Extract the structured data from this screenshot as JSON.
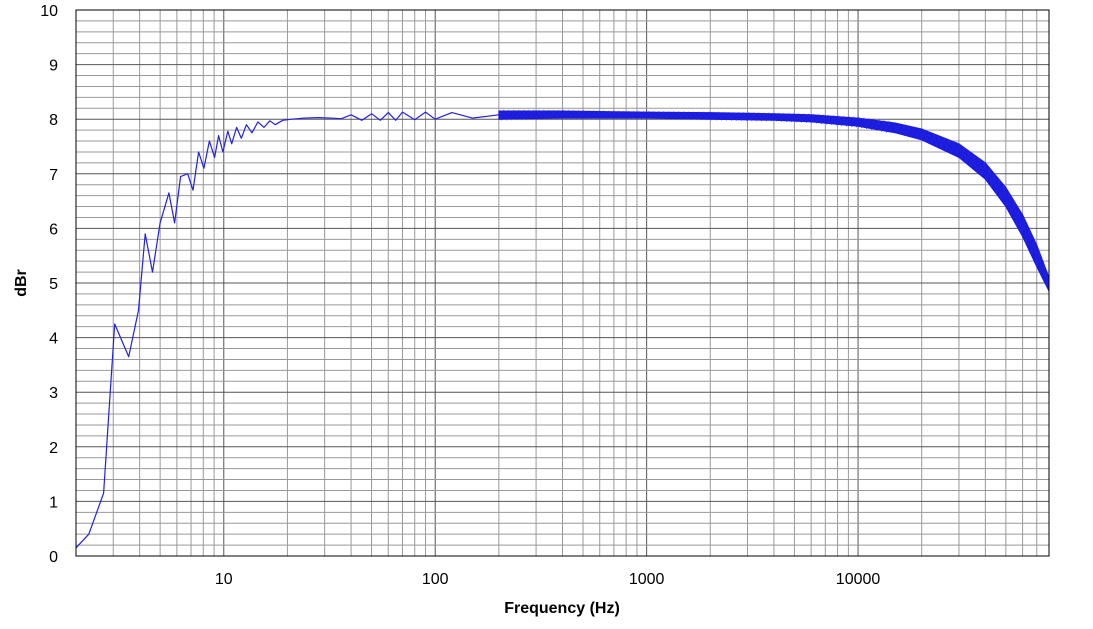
{
  "chart_data": {
    "type": "line",
    "title": "",
    "xlabel": "Frequency (Hz)",
    "ylabel": "dBr",
    "x_scale": "log",
    "xlim": [
      2,
      80000
    ],
    "ylim": [
      0,
      10
    ],
    "grid": true,
    "x_tick_labels": [
      {
        "value": 10,
        "label": "10"
      },
      {
        "value": 100,
        "label": "100"
      },
      {
        "value": 1000,
        "label": "1000"
      },
      {
        "value": 10000,
        "label": "10000"
      }
    ],
    "y_ticks": [
      0,
      1,
      2,
      3,
      4,
      5,
      6,
      7,
      8,
      9,
      10
    ],
    "series": [
      {
        "color": "#2222dd",
        "band_color": "#1a1ae0",
        "x": [
          2,
          2.3,
          2.7,
          3.05,
          3.55,
          3.95,
          4.25,
          4.6,
          5.0,
          5.5,
          5.85,
          6.25,
          6.75,
          7.15,
          7.6,
          8.05,
          8.55,
          9.05,
          9.45,
          9.9,
          10.45,
          10.9,
          11.5,
          12.1,
          12.8,
          13.6,
          14.5,
          15.5,
          16.5,
          17.5,
          19,
          21,
          24,
          28,
          32,
          36,
          40,
          45,
          50,
          55,
          60,
          65,
          70,
          80,
          90,
          100,
          120,
          150,
          200
        ],
        "y": [
          0.15,
          0.4,
          1.15,
          4.25,
          3.65,
          4.5,
          5.9,
          5.2,
          6.1,
          6.65,
          6.1,
          6.95,
          7.0,
          6.7,
          7.4,
          7.1,
          7.6,
          7.3,
          7.7,
          7.4,
          7.78,
          7.55,
          7.85,
          7.65,
          7.9,
          7.75,
          7.95,
          7.85,
          7.97,
          7.9,
          7.98,
          8.0,
          8.02,
          8.03,
          8.02,
          8.01,
          8.08,
          7.98,
          8.1,
          7.98,
          8.12,
          7.98,
          8.13,
          7.99,
          8.13,
          8.0,
          8.12,
          8.02,
          8.08
        ],
        "band_x": [
          200,
          400,
          1000,
          2000,
          4000,
          6000,
          10000,
          15000,
          20000,
          30000,
          40000,
          50000,
          60000,
          70000,
          80000
        ],
        "band_upper": [
          8.15,
          8.15,
          8.13,
          8.12,
          8.1,
          8.08,
          8.02,
          7.93,
          7.82,
          7.55,
          7.2,
          6.75,
          6.25,
          5.7,
          5.1
        ],
        "band_lower": [
          8.0,
          8.02,
          8.02,
          8.0,
          7.98,
          7.95,
          7.87,
          7.75,
          7.62,
          7.3,
          6.9,
          6.4,
          5.85,
          5.3,
          4.85
        ]
      }
    ]
  }
}
